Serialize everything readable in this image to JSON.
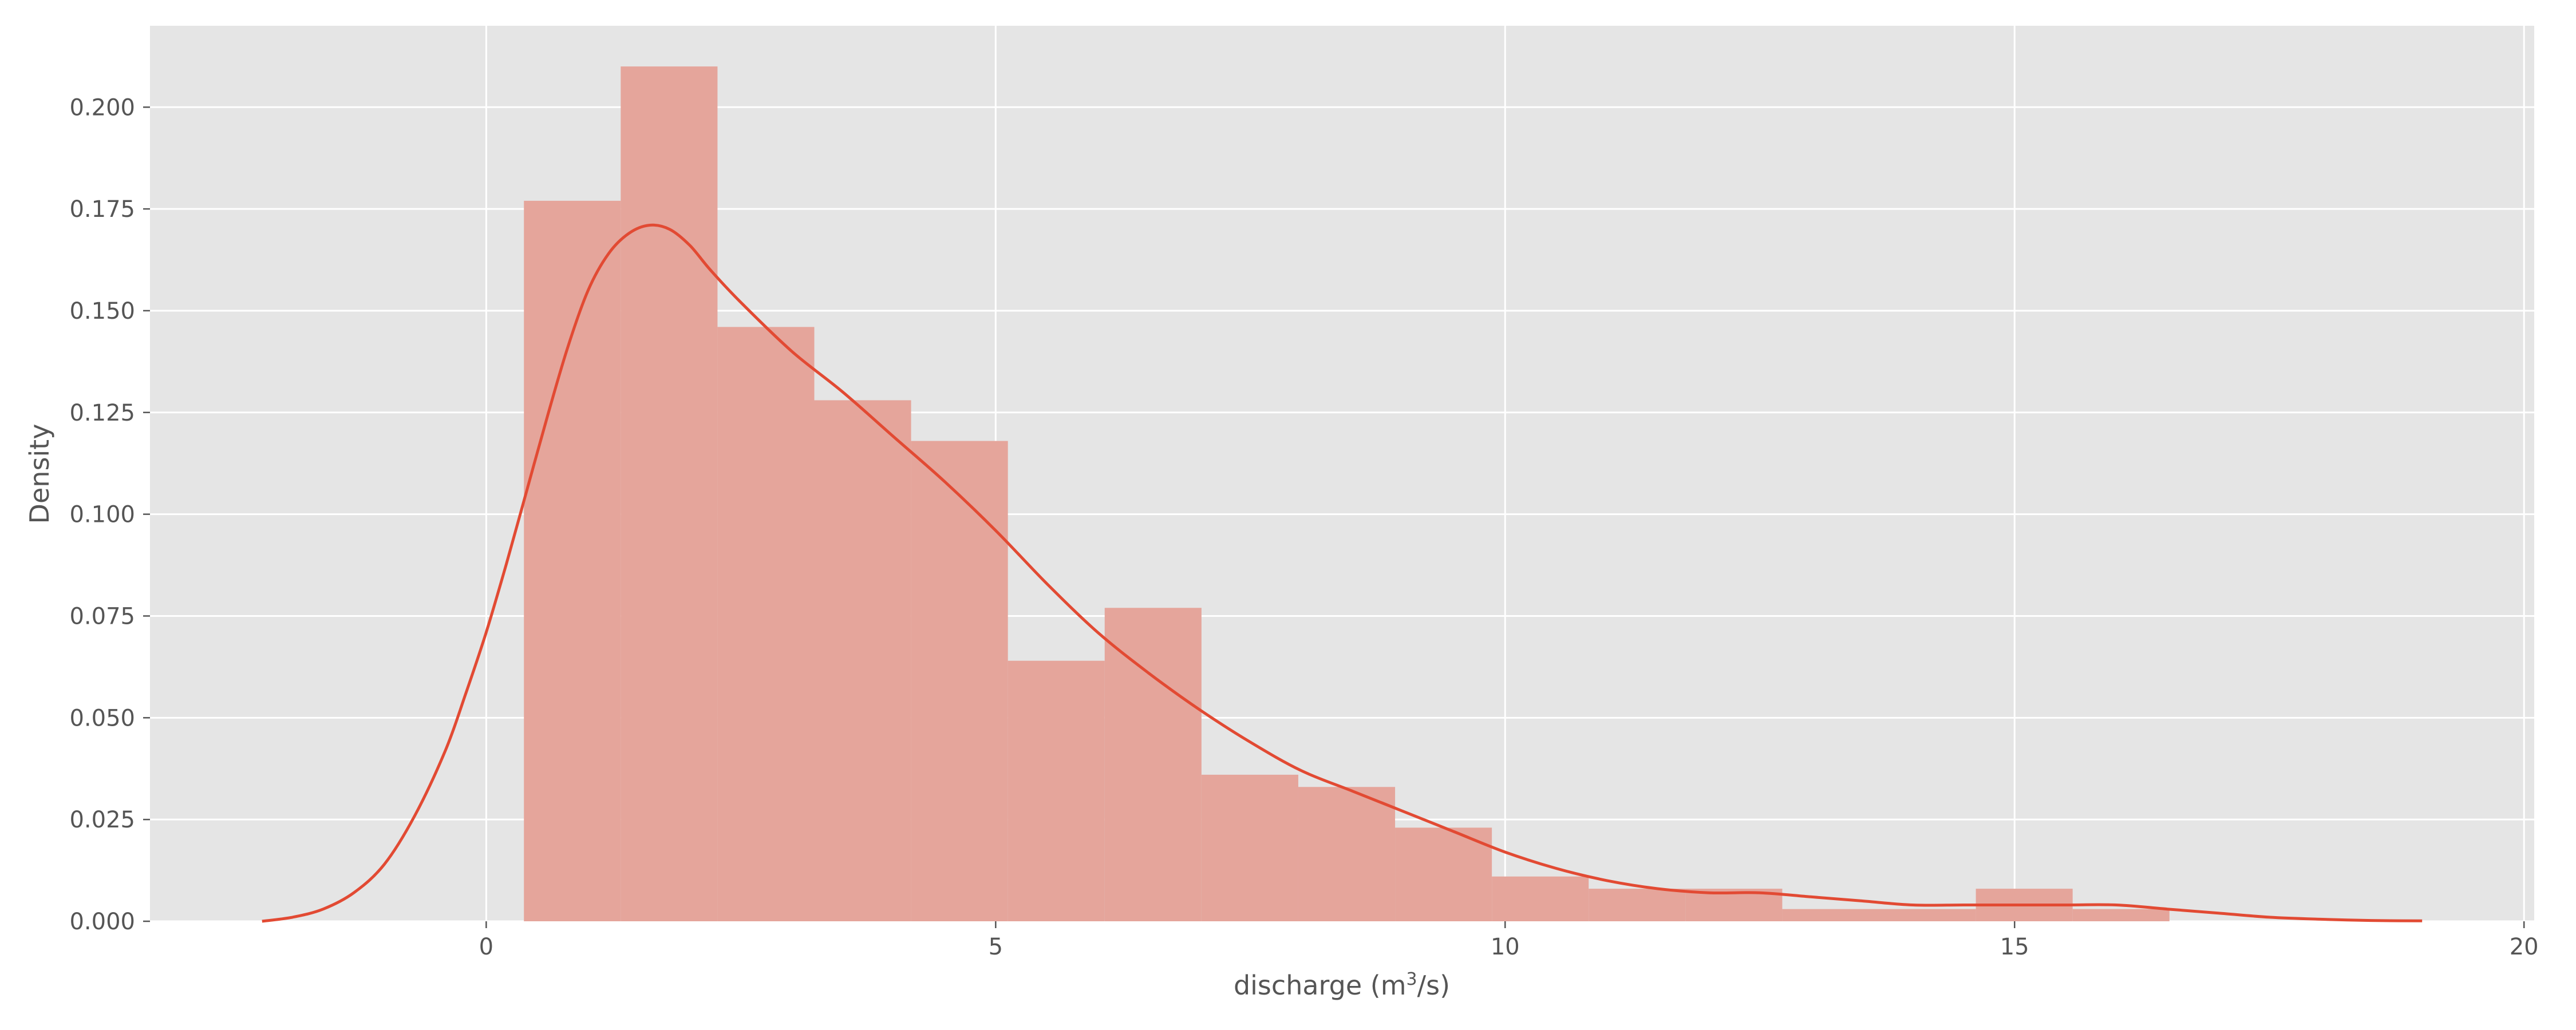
{
  "chart_data": {
    "type": "bar",
    "title": "",
    "xlabel": {
      "prefix": "discharge (m",
      "superscript": "3",
      "suffix": "/s)"
    },
    "ylabel": "Density",
    "xlim": [
      -3.3,
      20.1
    ],
    "ylim": [
      0,
      0.22
    ],
    "x_ticks": [
      0,
      5,
      10,
      15,
      20
    ],
    "y_ticks": [
      0.0,
      0.025,
      0.05,
      0.075,
      0.1,
      0.125,
      0.15,
      0.175,
      0.2
    ],
    "grid": true,
    "legend": "none",
    "colors": {
      "background": "#E5E5E5",
      "grid": "#FFFFFF",
      "bar": "#E5A59B",
      "kde": "#E24A33",
      "tick": "#555555"
    },
    "histogram": {
      "bin_edges": [
        0.37,
        1.32,
        2.27,
        3.22,
        4.17,
        5.12,
        6.07,
        7.02,
        7.97,
        8.92,
        9.87,
        10.82,
        11.77,
        12.72,
        13.67,
        14.62,
        15.57,
        16.52
      ],
      "values": [
        0.177,
        0.21,
        0.146,
        0.128,
        0.118,
        0.064,
        0.077,
        0.036,
        0.033,
        0.023,
        0.011,
        0.008,
        0.008,
        0.003,
        0.003,
        0.008,
        0.003
      ]
    },
    "kde": {
      "x": [
        -2.2,
        -1.9,
        -1.6,
        -1.3,
        -1.0,
        -0.7,
        -0.4,
        -0.2,
        0.0,
        0.2,
        0.4,
        0.6,
        0.8,
        1.0,
        1.2,
        1.4,
        1.6,
        1.8,
        2.0,
        2.2,
        2.5,
        3.0,
        3.5,
        4.0,
        4.5,
        5.0,
        5.5,
        6.0,
        6.5,
        7.0,
        7.5,
        8.0,
        8.5,
        9.0,
        9.5,
        10.0,
        10.5,
        11.0,
        11.5,
        12.0,
        12.5,
        13.0,
        13.5,
        14.0,
        14.5,
        15.0,
        15.5,
        16.0,
        16.5,
        17.0,
        17.5,
        18.0,
        18.5,
        19.0
      ],
      "y": [
        0.0,
        0.001,
        0.003,
        0.007,
        0.014,
        0.026,
        0.042,
        0.056,
        0.071,
        0.088,
        0.106,
        0.124,
        0.141,
        0.155,
        0.164,
        0.169,
        0.171,
        0.17,
        0.166,
        0.16,
        0.152,
        0.14,
        0.13,
        0.119,
        0.108,
        0.096,
        0.083,
        0.071,
        0.061,
        0.052,
        0.044,
        0.037,
        0.032,
        0.027,
        0.022,
        0.017,
        0.013,
        0.01,
        0.008,
        0.007,
        0.007,
        0.006,
        0.005,
        0.004,
        0.004,
        0.004,
        0.004,
        0.004,
        0.003,
        0.002,
        0.001,
        0.0005,
        0.0002,
        0.0001
      ]
    }
  }
}
